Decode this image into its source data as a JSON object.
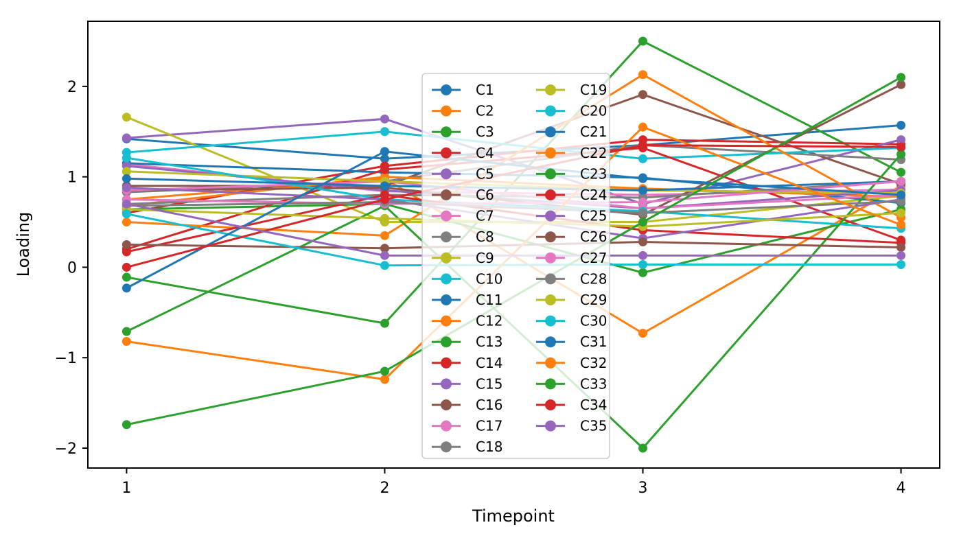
{
  "figure": {
    "background": "#ffffff"
  },
  "chart_data": {
    "type": "line",
    "title": "",
    "xlabel": "Timepoint",
    "ylabel": "Loading",
    "x": [
      1,
      2,
      3,
      4
    ],
    "x_tick_labels": [
      "1",
      "2",
      "3",
      "4"
    ],
    "y_tick_values": [
      -2,
      -1,
      0,
      1,
      2
    ],
    "y_tick_labels": [
      "−2",
      "−1",
      "0",
      "1",
      "2"
    ],
    "xlim": [
      0.85,
      4.15
    ],
    "ylim": [
      -2.22,
      2.72
    ],
    "grid": false,
    "marker": "circle",
    "legend": {
      "position": "center",
      "columns": 2,
      "rows_per_column": 18,
      "frame": true,
      "frame_color": "#cccccc",
      "frame_fill": "#ffffff",
      "frame_alpha": 0.8
    },
    "palette": [
      "#1f77b4",
      "#ff7f0e",
      "#2ca02c",
      "#d62728",
      "#9467bd",
      "#8c564b",
      "#e377c2",
      "#7f7f7f",
      "#bcbd22",
      "#17becf"
    ],
    "series": [
      {
        "name": "C1",
        "color": "#1f77b4",
        "values": [
          1.42,
          1.2,
          1.35,
          1.57
        ]
      },
      {
        "name": "C2",
        "color": "#ff7f0e",
        "values": [
          0.75,
          0.98,
          -0.73,
          0.9
        ]
      },
      {
        "name": "C3",
        "color": "#2ca02c",
        "values": [
          -0.11,
          -0.62,
          2.5,
          1.05
        ]
      },
      {
        "name": "C4",
        "color": "#d62728",
        "values": [
          0.6,
          1.12,
          1.41,
          1.36
        ]
      },
      {
        "name": "C5",
        "color": "#9467bd",
        "values": [
          1.43,
          1.64,
          0.7,
          1.41
        ]
      },
      {
        "name": "C6",
        "color": "#8c564b",
        "values": [
          0.9,
          0.9,
          1.91,
          0.92
        ]
      },
      {
        "name": "C7",
        "color": "#e377c2",
        "values": [
          1.14,
          0.84,
          0.8,
          0.86
        ]
      },
      {
        "name": "C8",
        "color": "#7f7f7f",
        "values": [
          0.83,
          0.95,
          1.35,
          1.19
        ]
      },
      {
        "name": "C9",
        "color": "#bcbd22",
        "values": [
          1.66,
          0.5,
          0.5,
          0.79
        ]
      },
      {
        "name": "C10",
        "color": "#17becf",
        "values": [
          1.27,
          1.5,
          1.2,
          1.32
        ]
      },
      {
        "name": "C11",
        "color": "#1f77b4",
        "values": [
          1.15,
          1.05,
          0.99,
          0.71
        ]
      },
      {
        "name": "C12",
        "color": "#ff7f0e",
        "values": [
          0.68,
          1.0,
          0.87,
          0.78
        ]
      },
      {
        "name": "C13",
        "color": "#2ca02c",
        "values": [
          0.64,
          0.7,
          -0.06,
          0.64
        ]
      },
      {
        "name": "C14",
        "color": "#d62728",
        "values": [
          0.2,
          1.08,
          1.32,
          0.3
        ]
      },
      {
        "name": "C15",
        "color": "#9467bd",
        "values": [
          1.12,
          0.85,
          0.65,
          0.85
        ]
      },
      {
        "name": "C16",
        "color": "#8c564b",
        "values": [
          0.85,
          0.88,
          0.58,
          2.02
        ]
      },
      {
        "name": "C17",
        "color": "#e377c2",
        "values": [
          0.85,
          0.95,
          0.65,
          0.8
        ]
      },
      {
        "name": "C18",
        "color": "#7f7f7f",
        "values": [
          0.7,
          0.8,
          0.77,
          0.95
        ]
      },
      {
        "name": "C19",
        "color": "#bcbd22",
        "values": [
          1.06,
          0.95,
          0.85,
          0.82
        ]
      },
      {
        "name": "C20",
        "color": "#17becf",
        "values": [
          1.21,
          0.75,
          0.62,
          0.43
        ]
      },
      {
        "name": "C21",
        "color": "#1f77b4",
        "values": [
          0.98,
          0.9,
          0.85,
          0.95
        ]
      },
      {
        "name": "C22",
        "color": "#ff7f0e",
        "values": [
          0.5,
          0.35,
          2.13,
          0.55
        ]
      },
      {
        "name": "C23",
        "color": "#2ca02c",
        "values": [
          -0.71,
          0.68,
          -2.0,
          1.25
        ]
      },
      {
        "name": "C24",
        "color": "#d62728",
        "values": [
          0.17,
          0.8,
          0.41,
          0.27
        ]
      },
      {
        "name": "C25",
        "color": "#9467bd",
        "values": [
          0.88,
          0.75,
          0.32,
          0.75
        ]
      },
      {
        "name": "C26",
        "color": "#8c564b",
        "values": [
          0.25,
          0.21,
          0.28,
          0.22
        ]
      },
      {
        "name": "C27",
        "color": "#e377c2",
        "values": [
          0.75,
          0.7,
          0.72,
          0.95
        ]
      },
      {
        "name": "C28",
        "color": "#7f7f7f",
        "values": [
          0.68,
          0.72,
          0.6,
          0.73
        ]
      },
      {
        "name": "C29",
        "color": "#bcbd22",
        "values": [
          0.64,
          0.54,
          0.45,
          0.6
        ]
      },
      {
        "name": "C30",
        "color": "#17becf",
        "values": [
          0.59,
          0.02,
          0.03,
          0.03
        ]
      },
      {
        "name": "C31",
        "color": "#1f77b4",
        "values": [
          -0.23,
          1.28,
          0.98,
          0.8
        ]
      },
      {
        "name": "C32",
        "color": "#ff7f0e",
        "values": [
          -0.82,
          -1.24,
          1.55,
          0.47
        ]
      },
      {
        "name": "C33",
        "color": "#2ca02c",
        "values": [
          -1.74,
          -1.15,
          0.5,
          2.1
        ]
      },
      {
        "name": "C34",
        "color": "#d62728",
        "values": [
          0.0,
          0.75,
          1.35,
          1.33
        ]
      },
      {
        "name": "C35",
        "color": "#9467bd",
        "values": [
          0.7,
          0.13,
          0.13,
          0.13
        ]
      }
    ]
  }
}
